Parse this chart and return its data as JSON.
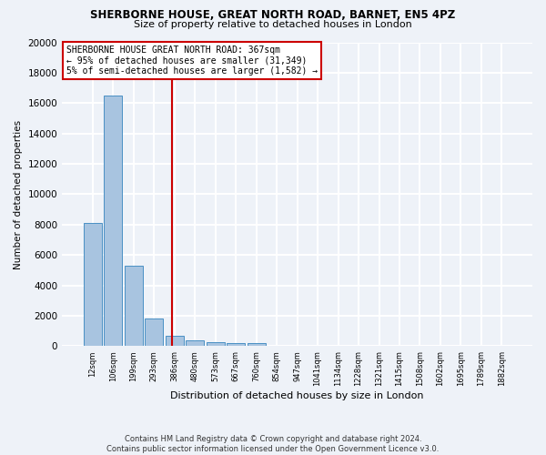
{
  "title": "SHERBORNE HOUSE, GREAT NORTH ROAD, BARNET, EN5 4PZ",
  "subtitle": "Size of property relative to detached houses in London",
  "xlabel": "Distribution of detached houses by size in London",
  "ylabel": "Number of detached properties",
  "categories": [
    "12sqm",
    "106sqm",
    "199sqm",
    "293sqm",
    "386sqm",
    "480sqm",
    "573sqm",
    "667sqm",
    "760sqm",
    "854sqm",
    "947sqm",
    "1041sqm",
    "1134sqm",
    "1228sqm",
    "1321sqm",
    "1415sqm",
    "1508sqm",
    "1602sqm",
    "1695sqm",
    "1789sqm",
    "1882sqm"
  ],
  "values": [
    8100,
    16500,
    5300,
    1850,
    700,
    380,
    290,
    220,
    180,
    0,
    0,
    0,
    0,
    0,
    0,
    0,
    0,
    0,
    0,
    0,
    0
  ],
  "bar_color": "#a8c4e0",
  "bar_edge_color": "#4a90c4",
  "vline_color": "#cc0000",
  "vline_pos": 3.87,
  "annotation_text": "SHERBORNE HOUSE GREAT NORTH ROAD: 367sqm\n← 95% of detached houses are smaller (31,349)\n5% of semi-detached houses are larger (1,582) →",
  "annotation_box_color": "#ffffff",
  "annotation_box_edge": "#cc0000",
  "footer": "Contains HM Land Registry data © Crown copyright and database right 2024.\nContains public sector information licensed under the Open Government Licence v3.0.",
  "ylim": [
    0,
    20000
  ],
  "background_color": "#eef2f8",
  "grid_color": "#ffffff"
}
